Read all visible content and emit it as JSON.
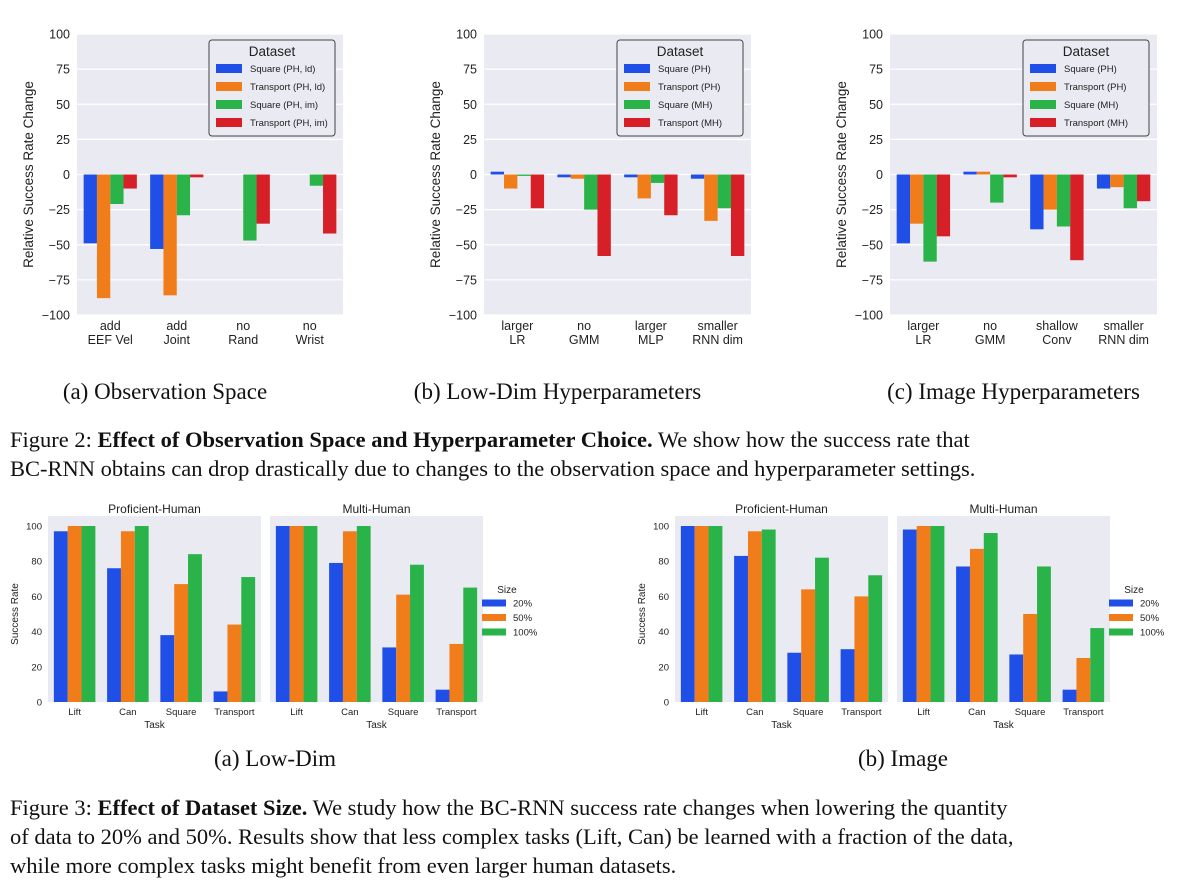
{
  "figure2": {
    "ylabel": "Relative Success Rate Change",
    "yticks": [
      100,
      75,
      50,
      25,
      0,
      -25,
      -50,
      -75,
      -100
    ],
    "ylim": [
      -100,
      100
    ],
    "legend_title": "Dataset",
    "panels": [
      {
        "caption": "(a) Observation Space",
        "categories": [
          [
            "add",
            "EEF Vel"
          ],
          [
            "add",
            "Joint"
          ],
          [
            "no",
            "Rand"
          ],
          [
            "no",
            "Wrist"
          ]
        ],
        "series": [
          {
            "name": "Square (PH, ld)",
            "color": "#1f4fe6",
            "values": [
              -49,
              -53,
              0,
              0
            ]
          },
          {
            "name": "Transport (PH, ld)",
            "color": "#f07d1a",
            "values": [
              -88,
              -86,
              0,
              0
            ]
          },
          {
            "name": "Square (PH, im)",
            "color": "#2ab348",
            "values": [
              -21,
              -29,
              -47,
              -8
            ]
          },
          {
            "name": "Transport (PH, im)",
            "color": "#d61f26",
            "values": [
              -10,
              -2,
              -35,
              -42
            ]
          }
        ]
      },
      {
        "caption": "(b) Low-Dim Hyperparameters",
        "categories": [
          [
            "larger",
            "LR"
          ],
          [
            "no",
            "GMM"
          ],
          [
            "larger",
            "MLP"
          ],
          [
            "smaller",
            "RNN dim"
          ]
        ],
        "series": [
          {
            "name": "Square (PH)",
            "color": "#1f4fe6",
            "values": [
              2,
              -2,
              -2,
              -3
            ]
          },
          {
            "name": "Transport (PH)",
            "color": "#f07d1a",
            "values": [
              -10,
              -3,
              -17,
              -33
            ]
          },
          {
            "name": "Square (MH)",
            "color": "#2ab348",
            "values": [
              -1,
              -25,
              -6,
              -24
            ]
          },
          {
            "name": "Transport (MH)",
            "color": "#d61f26",
            "values": [
              -24,
              -58,
              -29,
              -58
            ]
          }
        ]
      },
      {
        "caption": "(c) Image Hyperparameters",
        "categories": [
          [
            "larger",
            "LR"
          ],
          [
            "no",
            "GMM"
          ],
          [
            "shallow",
            "Conv"
          ],
          [
            "smaller",
            "RNN dim"
          ]
        ],
        "series": [
          {
            "name": "Square (PH)",
            "color": "#1f4fe6",
            "values": [
              -49,
              2,
              -39,
              -10
            ]
          },
          {
            "name": "Transport (PH)",
            "color": "#f07d1a",
            "values": [
              -35,
              2,
              -25,
              -9
            ]
          },
          {
            "name": "Square (MH)",
            "color": "#2ab348",
            "values": [
              -62,
              -20,
              -37,
              -24
            ]
          },
          {
            "name": "Transport (MH)",
            "color": "#d61f26",
            "values": [
              -44,
              -2,
              -61,
              -19
            ]
          }
        ]
      }
    ],
    "caption_label": "Figure 2:",
    "caption_bold": "Effect of Observation Space and Hyperparameter Choice.",
    "caption_line1_rest": "We show how the success rate that",
    "caption_line2": "BC-RNN obtains can drop drastically due to changes to the observation space and hyperparameter settings."
  },
  "figure3": {
    "ylabel": "Success Rate",
    "xlabel": "Task",
    "yticks": [
      0,
      20,
      40,
      60,
      80,
      100
    ],
    "ylim": [
      0,
      100
    ],
    "legend_title": "Size",
    "legend": [
      {
        "name": "20%",
        "color": "#1f4fe6"
      },
      {
        "name": "50%",
        "color": "#f07d1a"
      },
      {
        "name": "100%",
        "color": "#2ab348"
      }
    ],
    "categories": [
      "Lift",
      "Can",
      "Square",
      "Transport"
    ],
    "groups": [
      {
        "caption": "(a) Low-Dim",
        "subplots": [
          {
            "title": "Proficient-Human",
            "values": [
              [
                97,
                100,
                100
              ],
              [
                76,
                97,
                100
              ],
              [
                38,
                67,
                84
              ],
              [
                6,
                44,
                71
              ]
            ]
          },
          {
            "title": "Multi-Human",
            "values": [
              [
                100,
                100,
                100
              ],
              [
                79,
                97,
                100
              ],
              [
                31,
                61,
                78
              ],
              [
                7,
                33,
                65
              ]
            ]
          }
        ]
      },
      {
        "caption": "(b) Image",
        "subplots": [
          {
            "title": "Proficient-Human",
            "values": [
              [
                100,
                100,
                100
              ],
              [
                83,
                97,
                98
              ],
              [
                28,
                64,
                82
              ],
              [
                30,
                60,
                72
              ]
            ]
          },
          {
            "title": "Multi-Human",
            "values": [
              [
                98,
                100,
                100
              ],
              [
                77,
                87,
                96
              ],
              [
                27,
                50,
                77
              ],
              [
                7,
                25,
                42
              ]
            ]
          }
        ]
      }
    ],
    "caption_label": "Figure 3:",
    "caption_bold": "Effect of Dataset Size.",
    "caption_line1_rest": "We study how the BC-RNN success rate changes when lowering the quantity",
    "caption_line2": "of data to 20% and 50%. Results show that less complex tasks (Lift, Can) be learned with a fraction of the data,",
    "caption_line3": "while more complex tasks might benefit from even larger human datasets."
  },
  "chart_data": [
    {
      "type": "bar",
      "title": "",
      "caption": "(a) Observation Space",
      "categories": [
        "add EEF Vel",
        "add Joint",
        "no Rand",
        "no Wrist"
      ],
      "ylabel": "Relative Success Rate Change",
      "ylim": [
        -100,
        100
      ],
      "legend": "top-right",
      "series": [
        {
          "name": "Square (PH, ld)",
          "values": [
            -49,
            -53,
            0,
            0
          ]
        },
        {
          "name": "Transport (PH, ld)",
          "values": [
            -88,
            -86,
            0,
            0
          ]
        },
        {
          "name": "Square (PH, im)",
          "values": [
            -21,
            -29,
            -47,
            -8
          ]
        },
        {
          "name": "Transport (PH, im)",
          "values": [
            -10,
            -2,
            -35,
            -42
          ]
        }
      ]
    },
    {
      "type": "bar",
      "title": "",
      "caption": "(b) Low-Dim Hyperparameters",
      "categories": [
        "larger LR",
        "no GMM",
        "larger MLP",
        "smaller RNN dim"
      ],
      "ylabel": "Relative Success Rate Change",
      "ylim": [
        -100,
        100
      ],
      "legend": "top-right",
      "series": [
        {
          "name": "Square (PH)",
          "values": [
            2,
            -2,
            -2,
            -3
          ]
        },
        {
          "name": "Transport (PH)",
          "values": [
            -10,
            -3,
            -17,
            -33
          ]
        },
        {
          "name": "Square (MH)",
          "values": [
            -1,
            -25,
            -6,
            -24
          ]
        },
        {
          "name": "Transport (MH)",
          "values": [
            -24,
            -58,
            -29,
            -58
          ]
        }
      ]
    },
    {
      "type": "bar",
      "title": "",
      "caption": "(c) Image Hyperparameters",
      "categories": [
        "larger LR",
        "no GMM",
        "shallow Conv",
        "smaller RNN dim"
      ],
      "ylabel": "Relative Success Rate Change",
      "ylim": [
        -100,
        100
      ],
      "legend": "top-right",
      "series": [
        {
          "name": "Square (PH)",
          "values": [
            -49,
            2,
            -39,
            -10
          ]
        },
        {
          "name": "Transport (PH)",
          "values": [
            -35,
            2,
            -25,
            -9
          ]
        },
        {
          "name": "Square (MH)",
          "values": [
            -62,
            -20,
            -37,
            -24
          ]
        },
        {
          "name": "Transport (MH)",
          "values": [
            -44,
            -2,
            -61,
            -19
          ]
        }
      ]
    },
    {
      "type": "bar",
      "title": "Proficient-Human",
      "caption": "(a) Low-Dim",
      "categories": [
        "Lift",
        "Can",
        "Square",
        "Transport"
      ],
      "xlabel": "Task",
      "ylabel": "Success Rate",
      "ylim": [
        0,
        100
      ],
      "series": [
        {
          "name": "20%",
          "values": [
            97,
            76,
            38,
            6
          ]
        },
        {
          "name": "50%",
          "values": [
            100,
            97,
            67,
            44
          ]
        },
        {
          "name": "100%",
          "values": [
            100,
            100,
            84,
            71
          ]
        }
      ]
    },
    {
      "type": "bar",
      "title": "Multi-Human",
      "caption": "(a) Low-Dim",
      "categories": [
        "Lift",
        "Can",
        "Square",
        "Transport"
      ],
      "xlabel": "Task",
      "ylim": [
        0,
        100
      ],
      "series": [
        {
          "name": "20%",
          "values": [
            100,
            79,
            31,
            7
          ]
        },
        {
          "name": "50%",
          "values": [
            100,
            97,
            61,
            33
          ]
        },
        {
          "name": "100%",
          "values": [
            100,
            100,
            78,
            65
          ]
        }
      ]
    },
    {
      "type": "bar",
      "title": "Proficient-Human",
      "caption": "(b) Image",
      "categories": [
        "Lift",
        "Can",
        "Square",
        "Transport"
      ],
      "xlabel": "Task",
      "ylabel": "Success Rate",
      "ylim": [
        0,
        100
      ],
      "series": [
        {
          "name": "20%",
          "values": [
            100,
            83,
            28,
            30
          ]
        },
        {
          "name": "50%",
          "values": [
            100,
            97,
            64,
            60
          ]
        },
        {
          "name": "100%",
          "values": [
            100,
            98,
            82,
            72
          ]
        }
      ]
    },
    {
      "type": "bar",
      "title": "Multi-Human",
      "caption": "(b) Image",
      "categories": [
        "Lift",
        "Can",
        "Square",
        "Transport"
      ],
      "xlabel": "Task",
      "ylim": [
        0,
        100
      ],
      "series": [
        {
          "name": "20%",
          "values": [
            98,
            77,
            27,
            7
          ]
        },
        {
          "name": "50%",
          "values": [
            100,
            87,
            50,
            25
          ]
        },
        {
          "name": "100%",
          "values": [
            100,
            96,
            77,
            42
          ]
        }
      ]
    }
  ]
}
